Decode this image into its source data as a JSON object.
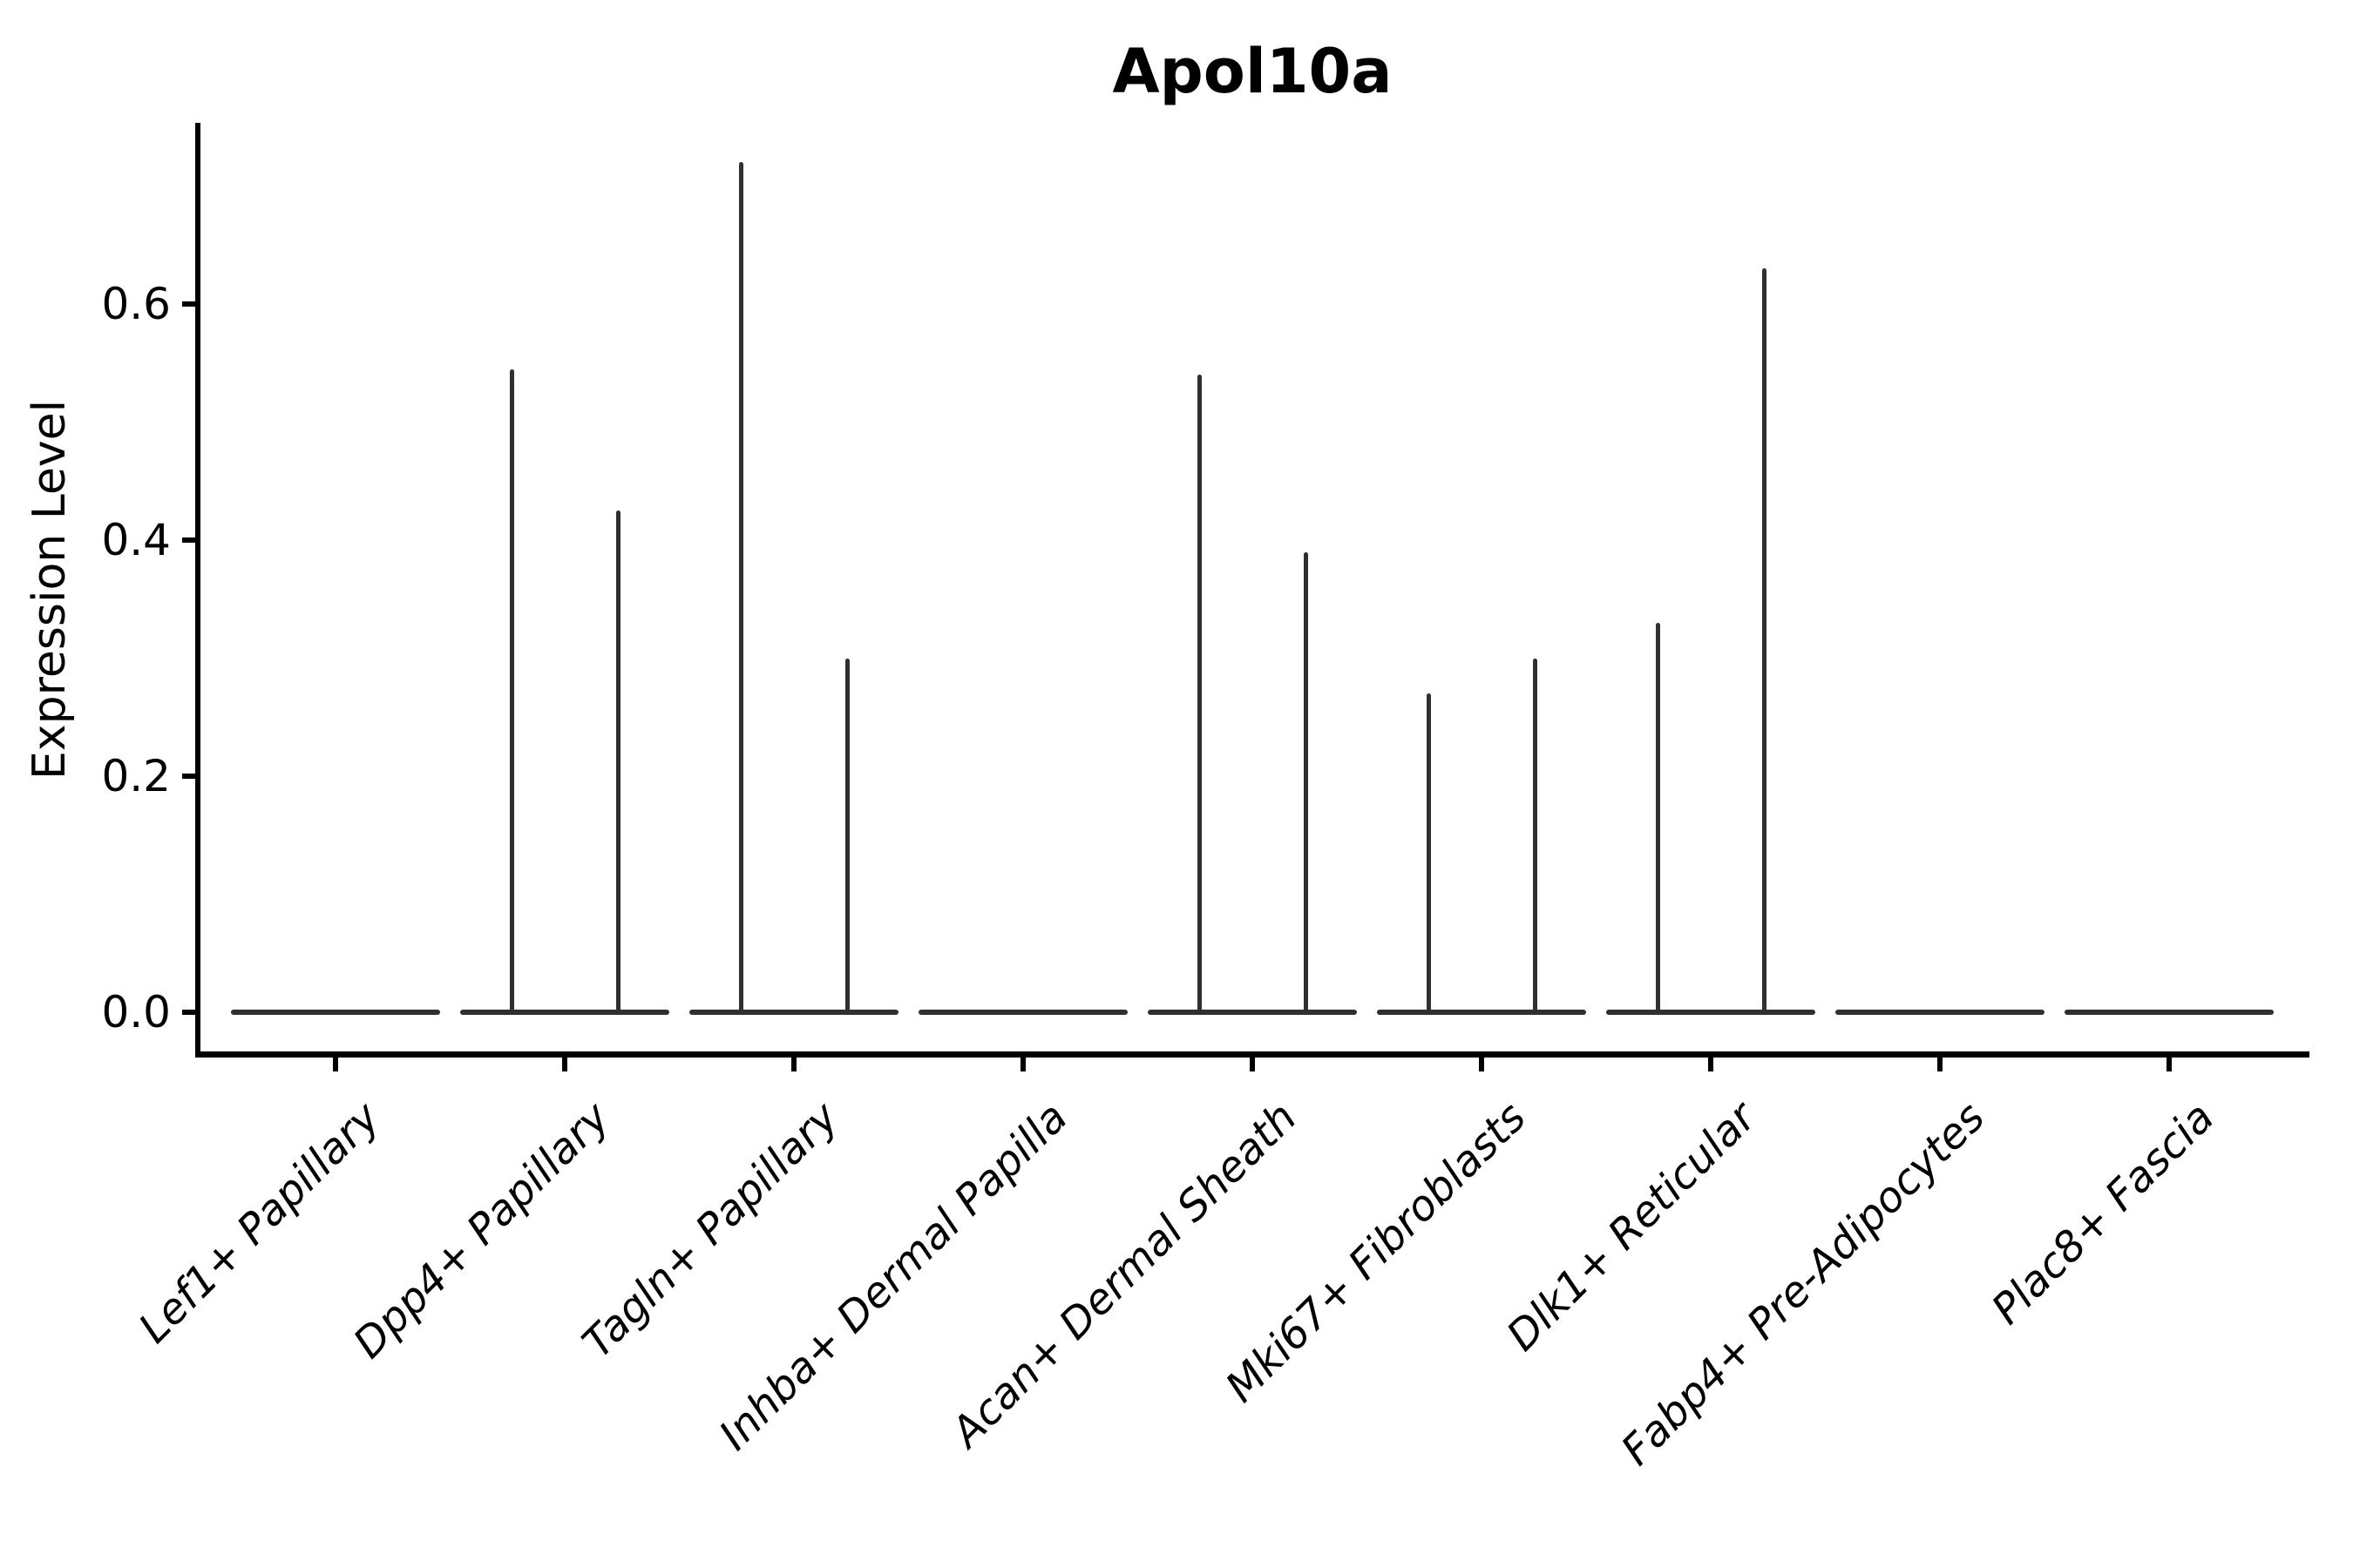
{
  "chart_data": {
    "type": "violin",
    "title": "Apol10a",
    "ylabel": "Expression Level",
    "xlabel": "",
    "legend": null,
    "grid": false,
    "y_axis": {
      "range": [
        -0.04,
        0.75
      ],
      "ticks": [
        {
          "label": "0.0",
          "value": 0.0
        },
        {
          "label": "0.2",
          "value": 0.2
        },
        {
          "label": "0.4",
          "value": 0.4
        },
        {
          "label": "0.6",
          "value": 0.6
        }
      ]
    },
    "categories": [
      "Lef1+ Papillary",
      "Dpp4+ Papillary",
      "Tagln+ Papillary",
      "Inhba+ Dermal Papilla",
      "Acan+ Dermal Sheath",
      "Mki67+ Fibroblasts",
      "Dlk1+ Reticular",
      "Fabp4+ Pre-Adipocytes",
      "Plac8+ Fascia"
    ],
    "violins": [
      {
        "category": "Lef1+ Papillary",
        "base_value": 0.0,
        "spikes": []
      },
      {
        "category": "Dpp4+ Papillary",
        "base_value": 0.0,
        "spikes": [
          {
            "side": "left",
            "value": 0.545
          },
          {
            "side": "right",
            "value": 0.425
          }
        ]
      },
      {
        "category": "Tagln+ Papillary",
        "base_value": 0.0,
        "spikes": [
          {
            "side": "left",
            "value": 0.72
          },
          {
            "side": "right",
            "value": 0.3
          }
        ]
      },
      {
        "category": "Inhba+ Dermal Papilla",
        "base_value": 0.0,
        "spikes": []
      },
      {
        "category": "Acan+ Dermal Sheath",
        "base_value": 0.0,
        "spikes": [
          {
            "side": "left",
            "value": 0.54
          },
          {
            "side": "right",
            "value": 0.39
          }
        ]
      },
      {
        "category": "Mki67+ Fibroblasts",
        "base_value": 0.0,
        "spikes": [
          {
            "side": "left",
            "value": 0.27
          },
          {
            "side": "right",
            "value": 0.3
          }
        ]
      },
      {
        "category": "Dlk1+ Reticular",
        "base_value": 0.0,
        "spikes": [
          {
            "side": "left",
            "value": 0.33
          },
          {
            "side": "right",
            "value": 0.63
          }
        ]
      },
      {
        "category": "Fabp4+ Pre-Adipocytes",
        "base_value": 0.0,
        "spikes": []
      },
      {
        "category": "Plac8+ Fascia",
        "base_value": 0.0,
        "spikes": []
      }
    ],
    "style": {
      "background_color": "#ffffff",
      "axis_color": "#000000",
      "text_color": "#000000",
      "violin_color": "#303030",
      "title_bold": true,
      "x_labels_italic": true,
      "x_label_rotation_deg": 45
    }
  }
}
